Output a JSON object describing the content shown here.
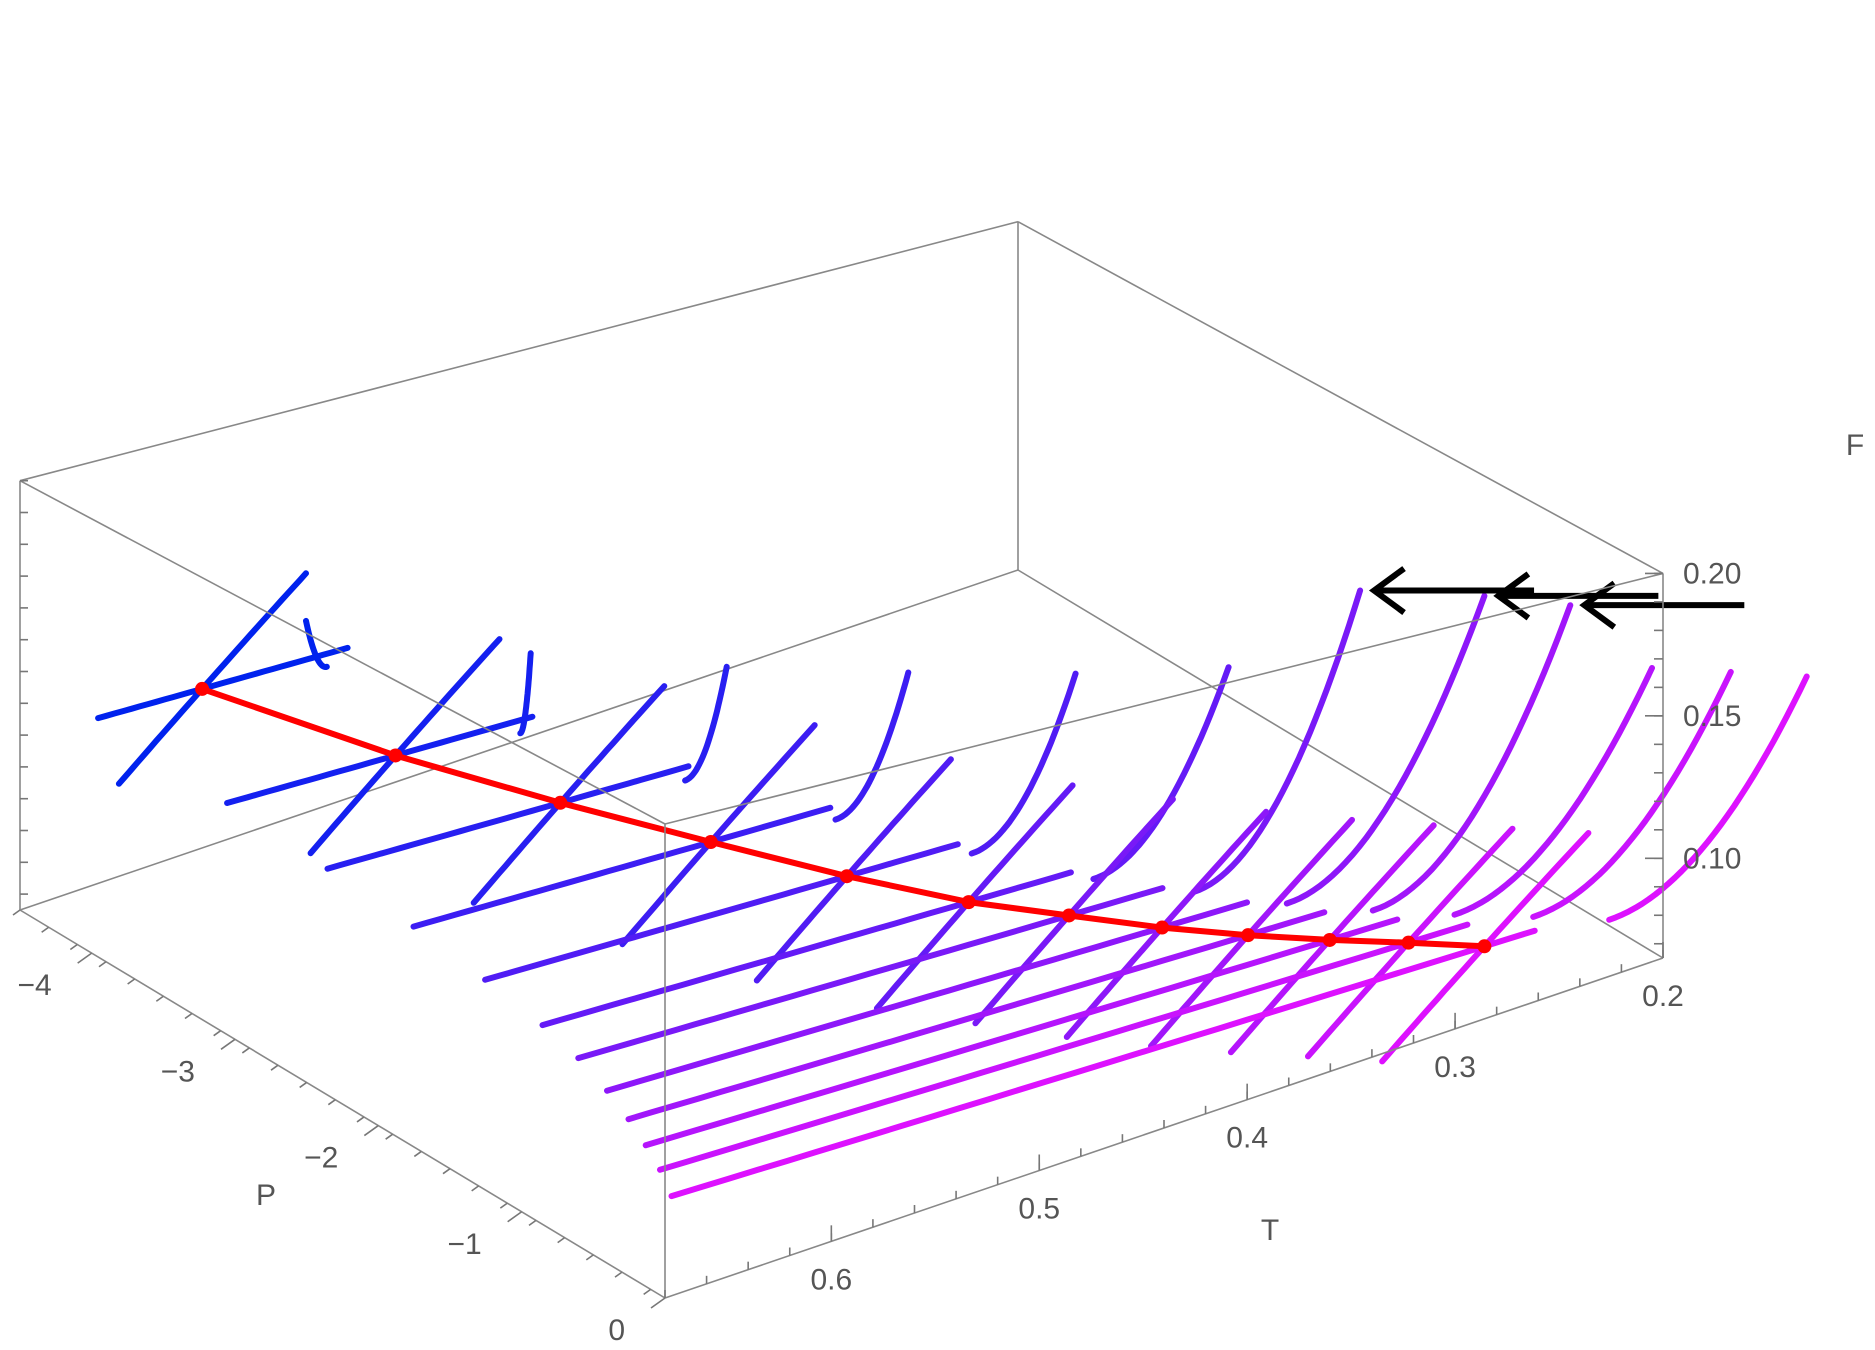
{
  "chart_data": {
    "type": "line3d",
    "axes": {
      "P": {
        "label": "P",
        "range": [
          -4.5,
          0
        ],
        "ticks": [
          {
            "value": -4,
            "label": "−4"
          },
          {
            "value": -3,
            "label": "−3"
          },
          {
            "value": -2,
            "label": "−2"
          },
          {
            "value": -1,
            "label": "−1"
          },
          {
            "value": 0,
            "label": "0"
          }
        ]
      },
      "T": {
        "label": "T",
        "range": [
          0.2,
          0.68
        ],
        "ticks": [
          {
            "value": 0.2,
            "label": "0.2"
          },
          {
            "value": 0.3,
            "label": "0.3"
          },
          {
            "value": 0.4,
            "label": "0.4"
          },
          {
            "value": 0.5,
            "label": "0.5"
          },
          {
            "value": 0.6,
            "label": "0.6"
          }
        ]
      },
      "F": {
        "label": "F",
        "range": [
          0.065,
          0.2
        ],
        "ticks": [
          {
            "value": 0.1,
            "label": "0.10"
          },
          {
            "value": 0.15,
            "label": "0.15"
          },
          {
            "value": 0.2,
            "label": "0.20"
          }
        ]
      }
    },
    "pressure_slices": [
      -4.1,
      -3.2,
      -2.5,
      -1.9,
      -1.4,
      -1.0,
      -0.75,
      -0.55,
      -0.4,
      -0.28,
      -0.18,
      -0.1
    ],
    "coexistence_curve": {
      "color": "#ff0000",
      "points": [
        {
          "P": -4.1,
          "T": 0.62,
          "F": 0.133
        },
        {
          "P": -3.2,
          "T": 0.589,
          "F": 0.129
        },
        {
          "P": -2.5,
          "T": 0.558,
          "F": 0.126
        },
        {
          "P": -1.9,
          "T": 0.527,
          "F": 0.123
        },
        {
          "P": -1.4,
          "T": 0.496,
          "F": 0.119
        },
        {
          "P": -1.0,
          "T": 0.465,
          "F": 0.115
        },
        {
          "P": -0.75,
          "T": 0.434,
          "F": 0.111
        },
        {
          "P": -0.55,
          "T": 0.403,
          "F": 0.106
        },
        {
          "P": -0.4,
          "T": 0.372,
          "F": 0.101
        },
        {
          "P": -0.28,
          "T": 0.341,
          "F": 0.096
        },
        {
          "P": -0.18,
          "T": 0.31,
          "F": 0.091
        },
        {
          "P": -0.1,
          "T": 0.279,
          "F": 0.085
        }
      ]
    },
    "arrows_pointing_to_slices": [
      6,
      7,
      8
    ],
    "color_scale": {
      "start": "#0022ee",
      "end": "#dd11ff"
    }
  }
}
